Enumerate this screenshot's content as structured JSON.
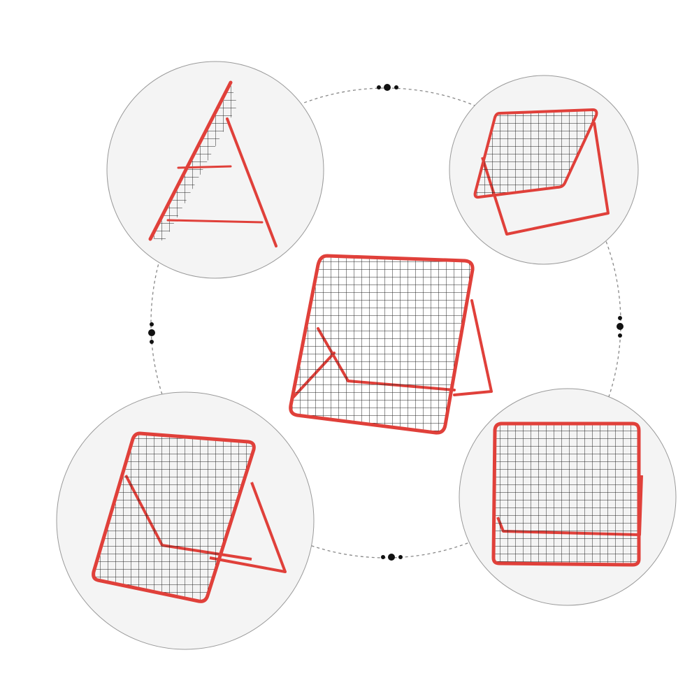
{
  "colors": {
    "background": "#ffffff",
    "view_circle_fill": "#f4f4f4",
    "view_circle_stroke": "#9a9a9a",
    "frame": "#e0403a",
    "net": "#222222",
    "dashed_ring": "#888888"
  },
  "views": [
    {
      "name": "side-view"
    },
    {
      "name": "rear-angled-view"
    },
    {
      "name": "front-angled-view"
    },
    {
      "name": "front-view"
    }
  ]
}
